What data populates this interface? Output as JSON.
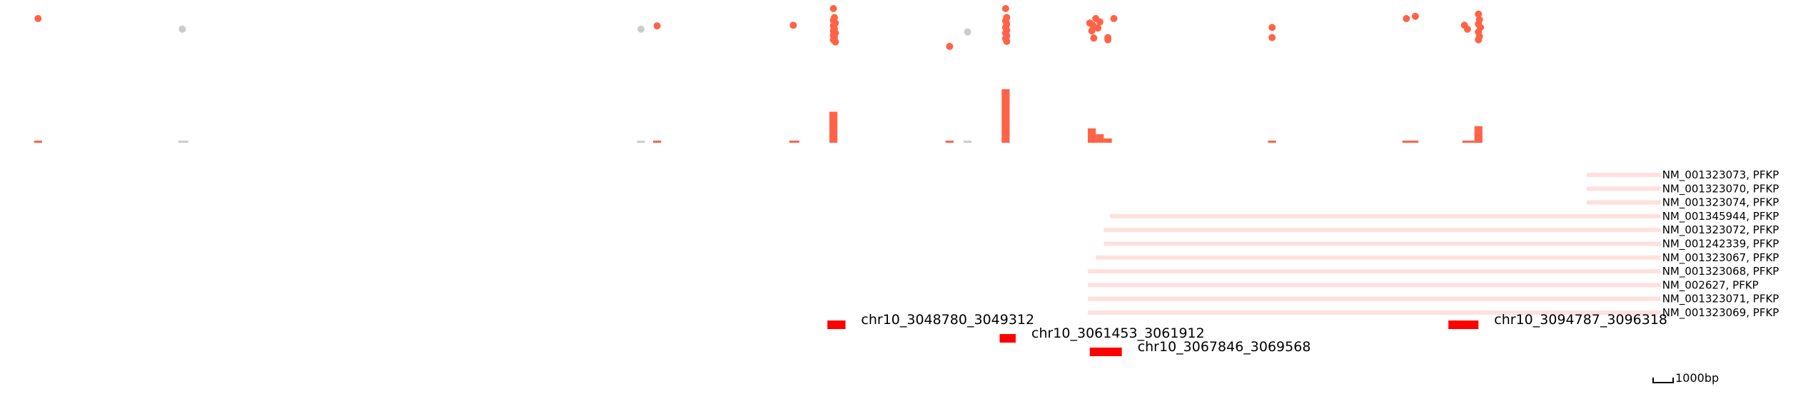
{
  "chart_data": {
    "type": "genome-track",
    "title": "",
    "genomic_range": [
      3028000,
      3118000
    ],
    "colors": {
      "snp_significant": "#ff6347",
      "snp_nonsignificant": "#cccccc",
      "transcript": "#ffe0de",
      "region": "#ff0000",
      "text": "#000000"
    },
    "snp_points": [
      {
        "x": 3029900,
        "y": 0.82,
        "sig": true
      },
      {
        "x": 3037100,
        "y": 0.63,
        "sig": false
      },
      {
        "x": 3060000,
        "y": 0.63,
        "sig": false
      },
      {
        "x": 3060800,
        "y": 0.69,
        "sig": true
      },
      {
        "x": 3067600,
        "y": 0.7,
        "sig": true
      },
      {
        "x": 3069600,
        "y": 1.0,
        "sig": true
      },
      {
        "x": 3069650,
        "y": 0.84,
        "sig": true
      },
      {
        "x": 3069600,
        "y": 0.79,
        "sig": true
      },
      {
        "x": 3069700,
        "y": 0.74,
        "sig": true
      },
      {
        "x": 3069600,
        "y": 0.69,
        "sig": true
      },
      {
        "x": 3069650,
        "y": 0.64,
        "sig": true
      },
      {
        "x": 3069600,
        "y": 0.6,
        "sig": true
      },
      {
        "x": 3069700,
        "y": 0.56,
        "sig": true
      },
      {
        "x": 3069600,
        "y": 0.52,
        "sig": true
      },
      {
        "x": 3069650,
        "y": 0.48,
        "sig": true
      },
      {
        "x": 3069600,
        "y": 0.44,
        "sig": true
      },
      {
        "x": 3069700,
        "y": 0.4,
        "sig": true
      },
      {
        "x": 3075400,
        "y": 0.32,
        "sig": true
      },
      {
        "x": 3076300,
        "y": 0.58,
        "sig": false
      },
      {
        "x": 3078200,
        "y": 1.0,
        "sig": true
      },
      {
        "x": 3078250,
        "y": 0.84,
        "sig": true
      },
      {
        "x": 3078200,
        "y": 0.78,
        "sig": true
      },
      {
        "x": 3078250,
        "y": 0.72,
        "sig": true
      },
      {
        "x": 3078200,
        "y": 0.66,
        "sig": true
      },
      {
        "x": 3078250,
        "y": 0.61,
        "sig": true
      },
      {
        "x": 3078200,
        "y": 0.56,
        "sig": true
      },
      {
        "x": 3078250,
        "y": 0.51,
        "sig": true
      },
      {
        "x": 3078200,
        "y": 0.46,
        "sig": true
      },
      {
        "x": 3078250,
        "y": 0.41,
        "sig": true
      },
      {
        "x": 3082400,
        "y": 0.74,
        "sig": true
      },
      {
        "x": 3082700,
        "y": 0.82,
        "sig": true
      },
      {
        "x": 3082550,
        "y": 0.7,
        "sig": true
      },
      {
        "x": 3082800,
        "y": 0.65,
        "sig": true
      },
      {
        "x": 3082500,
        "y": 0.6,
        "sig": true
      },
      {
        "x": 3082900,
        "y": 0.76,
        "sig": true
      },
      {
        "x": 3082600,
        "y": 0.47,
        "sig": true
      },
      {
        "x": 3083300,
        "y": 0.44,
        "sig": true
      },
      {
        "x": 3083600,
        "y": 0.82,
        "sig": true
      },
      {
        "x": 3083300,
        "y": 0.48,
        "sig": true
      },
      {
        "x": 3091500,
        "y": 0.66,
        "sig": true
      },
      {
        "x": 3091500,
        "y": 0.48,
        "sig": true
      },
      {
        "x": 3098200,
        "y": 0.82,
        "sig": true
      },
      {
        "x": 3098650,
        "y": 0.86,
        "sig": true
      },
      {
        "x": 3101800,
        "y": 0.9,
        "sig": true
      },
      {
        "x": 3101850,
        "y": 0.8,
        "sig": true
      },
      {
        "x": 3101800,
        "y": 0.72,
        "sig": true
      },
      {
        "x": 3101900,
        "y": 0.66,
        "sig": true
      },
      {
        "x": 3101800,
        "y": 0.58,
        "sig": true
      },
      {
        "x": 3101850,
        "y": 0.5,
        "sig": true
      },
      {
        "x": 3101800,
        "y": 0.44,
        "sig": true
      },
      {
        "x": 3101100,
        "y": 0.7,
        "sig": true
      },
      {
        "x": 3101250,
        "y": 0.63,
        "sig": true
      }
    ],
    "density_bars": [
      {
        "x0": 3029700,
        "x1": 3030100,
        "h": 0.04,
        "sig": true
      },
      {
        "x0": 3036900,
        "x1": 3037400,
        "h": 0.04,
        "sig": false
      },
      {
        "x0": 3059800,
        "x1": 3060200,
        "h": 0.04,
        "sig": false
      },
      {
        "x0": 3060600,
        "x1": 3061000,
        "h": 0.04,
        "sig": true
      },
      {
        "x0": 3067400,
        "x1": 3067900,
        "h": 0.04,
        "sig": true
      },
      {
        "x0": 3069400,
        "x1": 3069800,
        "h": 0.58,
        "sig": true
      },
      {
        "x0": 3075200,
        "x1": 3075600,
        "h": 0.04,
        "sig": true
      },
      {
        "x0": 3076100,
        "x1": 3076500,
        "h": 0.04,
        "sig": false
      },
      {
        "x0": 3078000,
        "x1": 3078400,
        "h": 1.0,
        "sig": true
      },
      {
        "x0": 3082300,
        "x1": 3082700,
        "h": 0.27,
        "sig": true
      },
      {
        "x0": 3082700,
        "x1": 3083100,
        "h": 0.16,
        "sig": true
      },
      {
        "x0": 3083100,
        "x1": 3083500,
        "h": 0.08,
        "sig": true
      },
      {
        "x0": 3091300,
        "x1": 3091700,
        "h": 0.04,
        "sig": true
      },
      {
        "x0": 3098000,
        "x1": 3098800,
        "h": 0.04,
        "sig": true
      },
      {
        "x0": 3101000,
        "x1": 3101600,
        "h": 0.04,
        "sig": true
      },
      {
        "x0": 3101600,
        "x1": 3102000,
        "h": 0.31,
        "sig": true
      }
    ],
    "transcripts": [
      {
        "label": "NM_001323073, PFKP",
        "start": 3107200,
        "end": 3110900
      },
      {
        "label": "NM_001323070, PFKP",
        "start": 3107200,
        "end": 3110900
      },
      {
        "label": "NM_001323074, PFKP",
        "start": 3107200,
        "end": 3110900
      },
      {
        "label": "NM_001345944, PFKP",
        "start": 3083400,
        "end": 3110900
      },
      {
        "label": "NM_001323072, PFKP",
        "start": 3083100,
        "end": 3110900
      },
      {
        "label": "NM_001242339, PFKP",
        "start": 3083100,
        "end": 3110900
      },
      {
        "label": "NM_001323067, PFKP",
        "start": 3082700,
        "end": 3110900
      },
      {
        "label": "NM_001323068, PFKP",
        "start": 3082300,
        "end": 3110900
      },
      {
        "label": "NM_002627, PFKP",
        "start": 3082300,
        "end": 3110900
      },
      {
        "label": "NM_001323071, PFKP",
        "start": 3082300,
        "end": 3110900
      },
      {
        "label": "NM_001323069, PFKP",
        "start": 3082300,
        "end": 3110900
      }
    ],
    "regions": [
      {
        "label": "chr10_3048780_3049312",
        "start": 3069300,
        "end": 3070200,
        "row": 0
      },
      {
        "label": "chr10_3061453_3061912",
        "start": 3077900,
        "end": 3078700,
        "row": 1
      },
      {
        "label": "chr10_3067846_3069568",
        "start": 3082400,
        "end": 3084000,
        "row": 2
      },
      {
        "label": "chr10_3094787_3096318",
        "start": 3100300,
        "end": 3101800,
        "row": 0
      }
    ],
    "scale_bar": {
      "length_bp": 1000,
      "label": "1000bp"
    }
  }
}
